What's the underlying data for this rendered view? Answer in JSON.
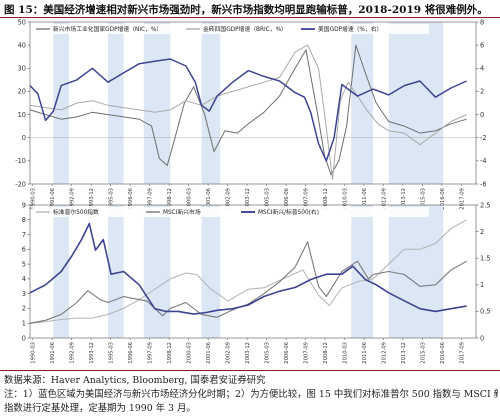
{
  "title": "图 15：美国经济增速相对新兴市场强劲时，新兴市场指数均明显跑输标普，2018-2019 将很难例外。",
  "source": {
    "line1": "数据来源：Haver Analytics, Bloomberg, 国泰君安证券研究",
    "line2": "注：1）蓝色区域为美国经济与新兴市场经济分化时期；2）为方便比较，图 15 中我们对标准普尔 500 指数与 MSCI 新兴市场",
    "line3": "指数进行定基处理，定基期为 1990 年 3 月。"
  },
  "colors": {
    "shade": "#dbe7f4",
    "em_gdp": "#6e6e6e",
    "bric_gdp": "#a8a8a8",
    "us_gdp": "#3d4592",
    "sp500": "#b2b2b2",
    "msci_em": "#7a7a7a",
    "ratio": "#3d4592"
  },
  "chart_data": [
    {
      "type": "line",
      "x_labels": [
        "1990-03",
        "1991-06",
        "1992-09",
        "1993-12",
        "1995-03",
        "1996-06",
        "1997-09",
        "1998-12",
        "2000-03",
        "2001-06",
        "2002-09",
        "2003-12",
        "2005-03",
        "2006-06",
        "2007-09",
        "2008-12",
        "2010-03",
        "2011-06",
        "2012-09",
        "2013-12",
        "2015-03",
        "2016-06",
        "2017-09"
      ],
      "ylim_left": [
        -20,
        50
      ],
      "yticks_left": [
        -20,
        -10,
        0,
        10,
        20,
        30,
        40,
        50
      ],
      "ylim_right": [
        -6,
        8
      ],
      "yticks_right": [
        -6,
        -4,
        -2,
        0,
        2,
        4,
        6,
        8
      ],
      "legend": [
        "新兴市场工业化国家GDP增速（NIC，%）",
        "金砖四国GDP增速（BRIC，%）",
        "美国GDP增速（%，右）"
      ],
      "shaded_periods": [
        [
          1991.5,
          1992.5
        ],
        [
          1995.0,
          1996.0
        ],
        [
          1997.3,
          1999.0
        ],
        [
          2001.0,
          2002.2
        ],
        [
          2010.6,
          2012.0
        ],
        [
          2013.0,
          2016.5
        ]
      ],
      "series": [
        {
          "name": "新兴市场工业化国家GDP增速（NIC，%）",
          "axis": "left",
          "x": [
            1990,
            1991,
            1992,
            1993,
            1994,
            1995,
            1996,
            1997,
            1997.8,
            1998.3,
            1998.8,
            1999.3,
            1999.9,
            2000.5,
            2001.2,
            2001.8,
            2002.5,
            2003.3,
            2004,
            2005,
            2006,
            2007,
            2007.7,
            2008.4,
            2008.9,
            2009.3,
            2009.8,
            2010.3,
            2010.9,
            2011.5,
            2012.2,
            2013,
            2014,
            2015,
            2016,
            2017,
            2018
          ],
          "values": [
            12,
            10,
            8,
            9,
            11,
            10,
            9,
            8,
            5,
            -9,
            -12,
            0,
            15,
            22,
            10,
            -6,
            3,
            2,
            6,
            11,
            18,
            30,
            38,
            12,
            -8,
            -16,
            -10,
            5,
            40,
            28,
            15,
            7,
            5,
            2,
            3,
            6,
            8
          ]
        },
        {
          "name": "金砖四国GDP增速（BRIC，%）",
          "axis": "left",
          "x": [
            1990,
            1991,
            1992,
            1993,
            1994,
            1995,
            1996,
            1997,
            1998,
            1999,
            2000,
            2001,
            2002,
            2003,
            2004,
            2005,
            2006,
            2007,
            2007.8,
            2008.5,
            2008.9,
            2009.4,
            2009.9,
            2010.4,
            2011,
            2011.6,
            2012.3,
            2013,
            2014,
            2015,
            2016,
            2017,
            2018
          ],
          "values": [
            14,
            13,
            12,
            15,
            16,
            14,
            13,
            12,
            11,
            12,
            16,
            14,
            18,
            20,
            22,
            24,
            26,
            37,
            40,
            30,
            10,
            -18,
            16,
            24,
            18,
            12,
            6,
            3,
            2,
            -3,
            2,
            7,
            10
          ]
        },
        {
          "name": "美国GDP增速（%，右）",
          "axis": "right",
          "x": [
            1990,
            1990.5,
            1991,
            1991.5,
            1992,
            1993,
            1994,
            1995,
            1996,
            1997,
            1998,
            1999,
            2000,
            2000.6,
            2001,
            2001.5,
            2002,
            2003,
            2004,
            2005,
            2006,
            2007,
            2007.6,
            2008,
            2008.5,
            2009,
            2009.5,
            2010,
            2011,
            2012,
            2013,
            2014,
            2015,
            2016,
            2017,
            2018
          ],
          "values": [
            2.5,
            1.8,
            -0.5,
            0.3,
            2.5,
            3,
            4,
            2.8,
            3.6,
            4.4,
            4.6,
            4.8,
            4.2,
            2.8,
            0.8,
            0.3,
            1.6,
            2.8,
            3.8,
            3.3,
            2.9,
            1.9,
            1.5,
            0.2,
            -2.5,
            -4.0,
            -2.0,
            2.6,
            1.6,
            2.2,
            1.7,
            2.5,
            2.9,
            1.5,
            2.3,
            2.9
          ]
        }
      ]
    },
    {
      "type": "line",
      "x_labels": [
        "1990-03",
        "1991-06",
        "1992-09",
        "1993-12",
        "1995-03",
        "1996-06",
        "1997-09",
        "1998-12",
        "2000-03",
        "2001-06",
        "2002-09",
        "2003-12",
        "2005-03",
        "2006-06",
        "2007-09",
        "2008-12",
        "2010-03",
        "2011-06",
        "2012-09",
        "2013-12",
        "2015-03",
        "2016-06",
        "2017-09"
      ],
      "ylim_left": [
        0,
        9
      ],
      "yticks_left": [
        0,
        1,
        2,
        3,
        4,
        5,
        6,
        7,
        8,
        9
      ],
      "ylim_right": [
        0,
        2.5
      ],
      "yticks_right": [
        0,
        0.5,
        1,
        1.5,
        2,
        2.5
      ],
      "legend": [
        "标准普尔500指数",
        "MSCI新兴市场",
        "MSCI新兴/标普500(右)"
      ],
      "shaded_periods": [
        [
          1991.5,
          1992.5
        ],
        [
          1995.0,
          1996.0
        ],
        [
          1997.3,
          1999.0
        ],
        [
          2001.0,
          2002.2
        ],
        [
          2010.6,
          2012.0
        ],
        [
          2013.0,
          2016.5
        ]
      ],
      "series": [
        {
          "name": "标准普尔500指数",
          "axis": "left",
          "x": [
            1990,
            1991,
            1992,
            1993,
            1994,
            1995,
            1996,
            1997,
            1998,
            1999,
            2000,
            2000.7,
            2001.5,
            2002.7,
            2003.5,
            2004,
            2005,
            2006,
            2007.5,
            2008.5,
            2009.2,
            2010,
            2011,
            2012,
            2013,
            2014,
            2015,
            2016,
            2017,
            2018
          ],
          "values": [
            1,
            1.1,
            1.25,
            1.35,
            1.35,
            1.6,
            2.0,
            2.6,
            3.3,
            4.0,
            4.4,
            4.3,
            3.4,
            2.5,
            3.0,
            3.3,
            3.4,
            3.9,
            4.6,
            2.9,
            2.2,
            3.4,
            3.8,
            4.0,
            5.0,
            6.0,
            6.0,
            6.4,
            7.4,
            8.0
          ]
        },
        {
          "name": "MSCI新兴市场",
          "axis": "left",
          "x": [
            1990,
            1991,
            1992,
            1993,
            1993.7,
            1994.5,
            1995,
            1996,
            1997.5,
            1998.5,
            1999,
            2000,
            2001,
            2002,
            2003,
            2004,
            2005,
            2006,
            2007,
            2007.8,
            2008.5,
            2009,
            2010,
            2011,
            2011.7,
            2012,
            2013,
            2014,
            2015,
            2016,
            2017,
            2018
          ],
          "values": [
            1,
            1.2,
            1.6,
            2.4,
            3.2,
            2.6,
            2.4,
            2.8,
            2.5,
            1.5,
            2.0,
            2.4,
            1.6,
            1.4,
            1.9,
            2.3,
            3.0,
            3.8,
            4.8,
            6.5,
            3.5,
            2.8,
            4.5,
            5.2,
            4.0,
            4.3,
            4.5,
            4.3,
            3.5,
            3.6,
            4.6,
            5.2
          ]
        },
        {
          "name": "MSCI新兴/标普500(右)",
          "axis": "right",
          "x": [
            1990,
            1991,
            1992,
            1992.7,
            1993.3,
            1993.8,
            1994.2,
            1994.7,
            1995.2,
            1996,
            1997,
            1998,
            1998.7,
            1999.5,
            2000.5,
            2001.3,
            2002,
            2003,
            2004,
            2005,
            2006,
            2007,
            2008,
            2009,
            2010,
            2010.7,
            2011.5,
            2012.2,
            2013,
            2014,
            2015,
            2016,
            2017,
            2018
          ],
          "values": [
            0.85,
            1.0,
            1.25,
            1.55,
            1.85,
            2.15,
            1.65,
            1.85,
            1.2,
            1.25,
            1.0,
            0.55,
            0.5,
            0.5,
            0.45,
            0.48,
            0.52,
            0.55,
            0.62,
            0.78,
            0.88,
            0.95,
            1.1,
            1.2,
            1.2,
            1.35,
            1.1,
            1.0,
            0.85,
            0.7,
            0.55,
            0.5,
            0.55,
            0.6
          ]
        }
      ]
    }
  ]
}
